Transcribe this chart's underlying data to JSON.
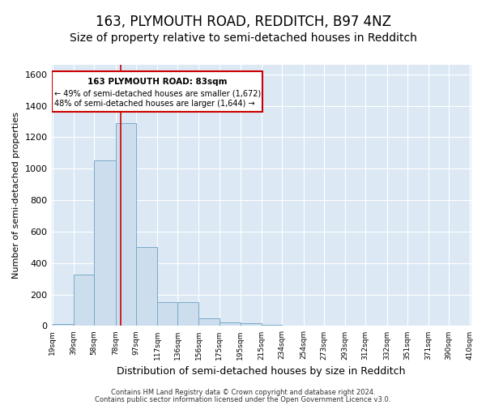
{
  "title": "163, PLYMOUTH ROAD, REDDITCH, B97 4NZ",
  "subtitle": "Size of property relative to semi-detached houses in Redditch",
  "xlabel": "Distribution of semi-detached houses by size in Redditch",
  "ylabel": "Number of semi-detached properties",
  "footnote1": "Contains HM Land Registry data © Crown copyright and database right 2024.",
  "footnote2": "Contains public sector information licensed under the Open Government Licence v3.0.",
  "bin_edges": [
    19,
    39,
    58,
    78,
    97,
    117,
    136,
    156,
    175,
    195,
    215,
    234,
    254,
    273,
    293,
    312,
    332,
    351,
    371,
    390,
    410
  ],
  "bar_heights": [
    15,
    325,
    1050,
    1290,
    500,
    150,
    150,
    50,
    25,
    20,
    8,
    3,
    2,
    1,
    1,
    1,
    1,
    1,
    1,
    1
  ],
  "bar_color": "#ccdded",
  "bar_edge_color": "#7aaac8",
  "tick_labels": [
    "19sqm",
    "39sqm",
    "58sqm",
    "78sqm",
    "97sqm",
    "117sqm",
    "136sqm",
    "156sqm",
    "175sqm",
    "195sqm",
    "215sqm",
    "234sqm",
    "254sqm",
    "273sqm",
    "293sqm",
    "312sqm",
    "332sqm",
    "351sqm",
    "371sqm",
    "390sqm",
    "410sqm"
  ],
  "property_size": 83,
  "property_label": "163 PLYMOUTH ROAD: 83sqm",
  "pct_smaller": 49,
  "pct_smaller_count": 1672,
  "pct_larger": 48,
  "pct_larger_count": 1644,
  "vline_color": "#cc0000",
  "annotation_box_color": "#cc0000",
  "ylim": [
    0,
    1660
  ],
  "yticks": [
    0,
    200,
    400,
    600,
    800,
    1000,
    1200,
    1400,
    1600
  ],
  "plot_background": "#dce9f5",
  "title_fontsize": 12,
  "subtitle_fontsize": 10,
  "xlabel_fontsize": 9,
  "ylabel_fontsize": 8
}
